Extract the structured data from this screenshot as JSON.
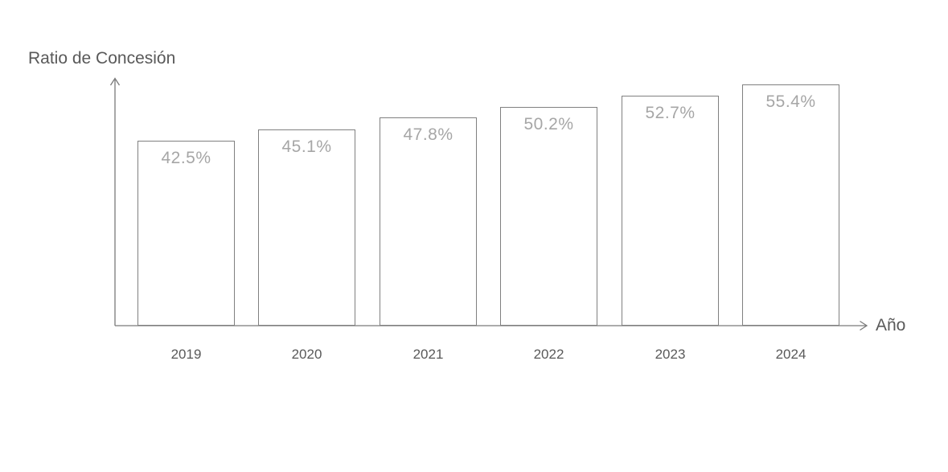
{
  "chart": {
    "title": "Ratio de Concesión",
    "x_axis_label": "Año"
  },
  "chart_data": {
    "type": "bar",
    "title": "Ratio de Concesión",
    "xlabel": "Año",
    "ylabel": "Ratio de Concesión",
    "categories": [
      "2019",
      "2020",
      "2021",
      "2022",
      "2023",
      "2024"
    ],
    "values": [
      42.5,
      45.1,
      47.8,
      50.2,
      52.7,
      55.4
    ],
    "value_labels": [
      "42.5%",
      "45.1%",
      "47.8%",
      "50.2%",
      "52.7%",
      "55.4%"
    ],
    "unit": "%",
    "ylim": [
      0,
      56.3
    ],
    "grid": false,
    "legend": false,
    "colors": {
      "background": "#ffffff",
      "bar_fill": "#ffffff",
      "bar_border": "#808080",
      "value_label": "#a6a6a6",
      "axis": "#7a7a7a",
      "text": "#595959"
    }
  }
}
